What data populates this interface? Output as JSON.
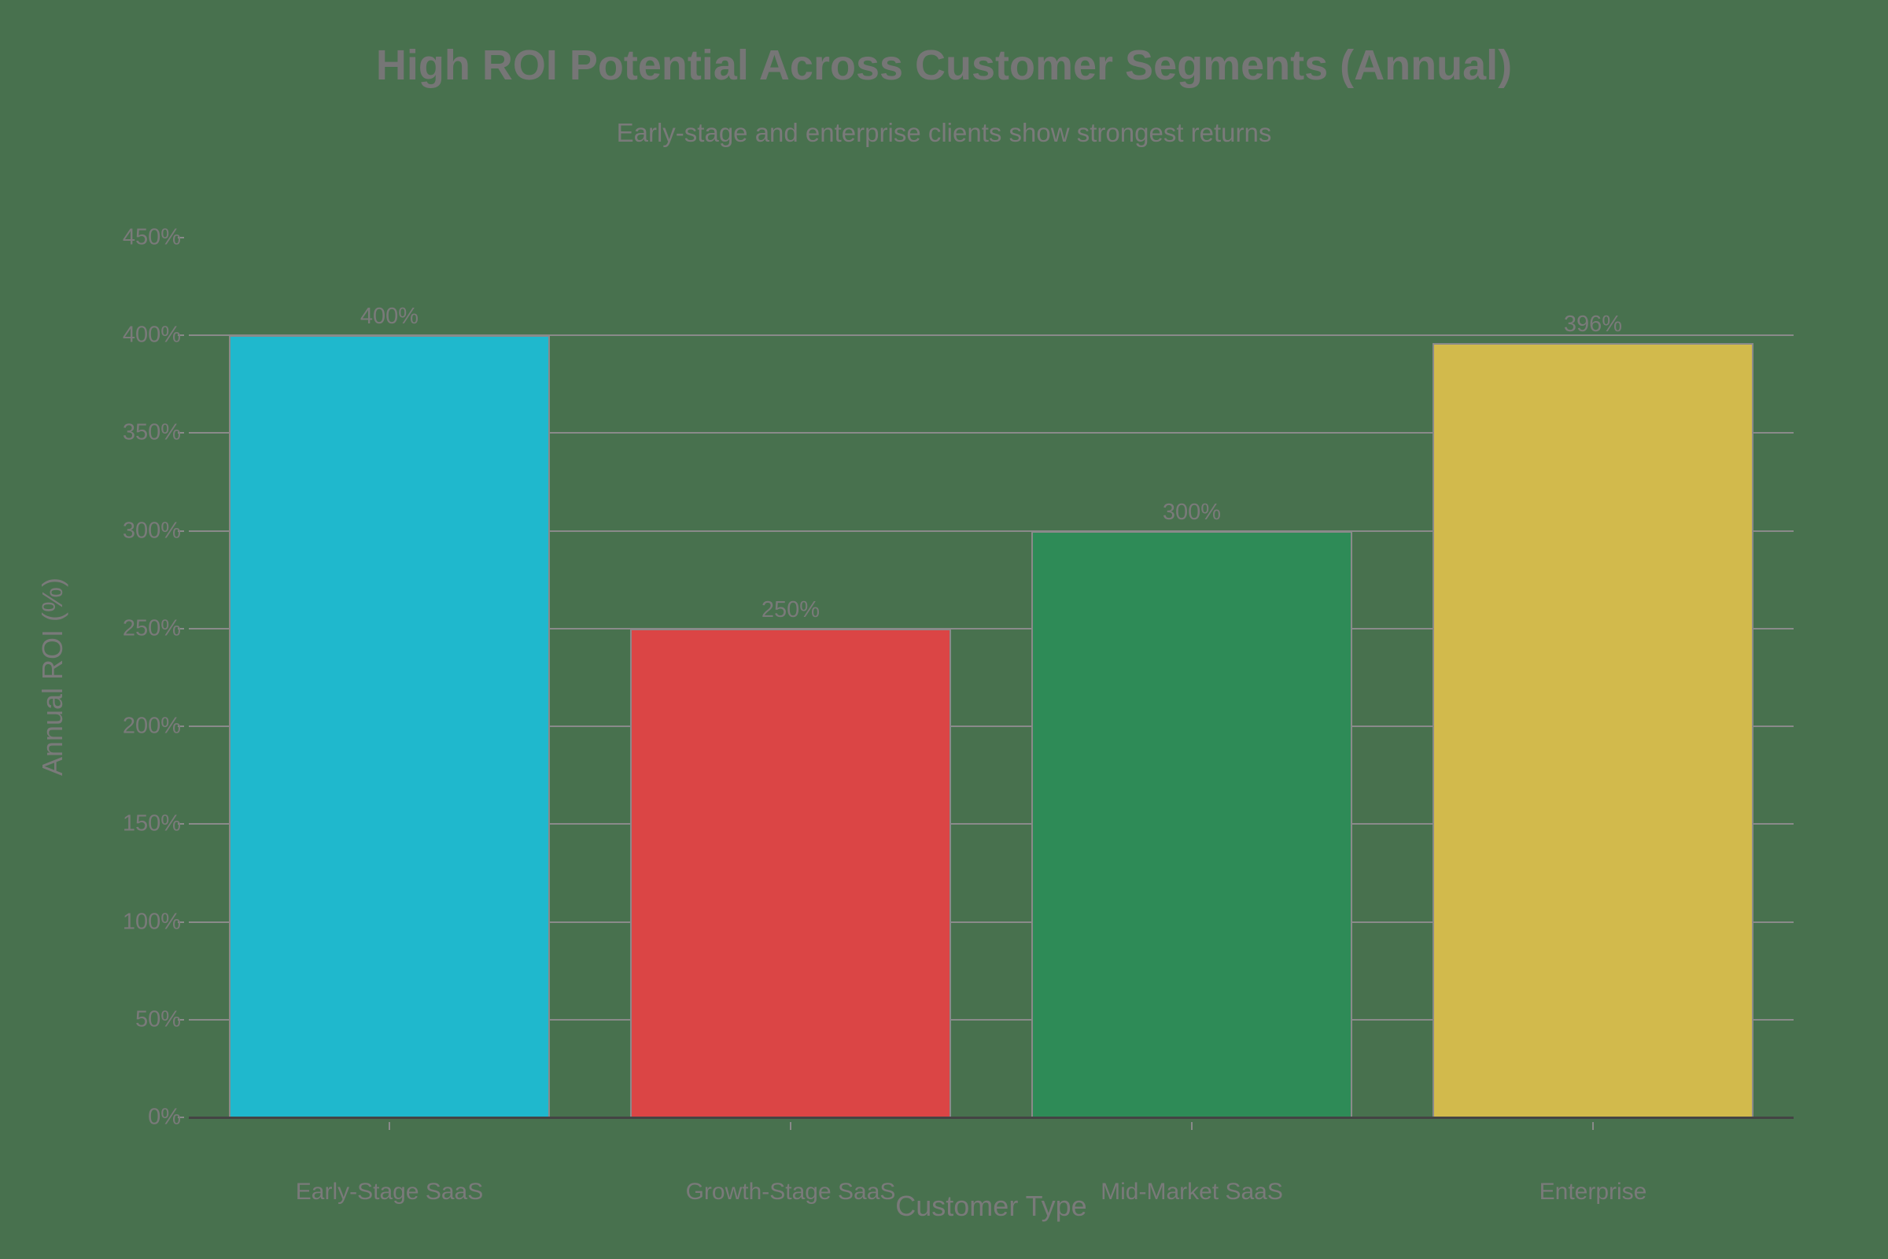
{
  "chart_data": {
    "type": "bar",
    "title": "High ROI Potential Across Customer Segments (Annual)",
    "subtitle": "Early-stage and enterprise clients show strongest returns",
    "xlabel": "Customer Type",
    "ylabel": "Annual ROI (%)",
    "categories": [
      "Early-Stage SaaS",
      "Growth-Stage SaaS",
      "Mid-Market SaaS",
      "Enterprise"
    ],
    "values": [
      400,
      250,
      300,
      396
    ],
    "data_labels": [
      "400%",
      "250%",
      "300%",
      "396%"
    ],
    "colors": [
      "#1fb8cd",
      "#db4545",
      "#2e8b57",
      "#d2ba4c"
    ],
    "ylim": [
      0,
      450
    ],
    "yticks": [
      "0%",
      "50%",
      "100%",
      "150%",
      "200%",
      "250%",
      "300%",
      "350%",
      "400%",
      "450%"
    ],
    "grid": true,
    "legend": "none"
  },
  "background": "#48714e"
}
